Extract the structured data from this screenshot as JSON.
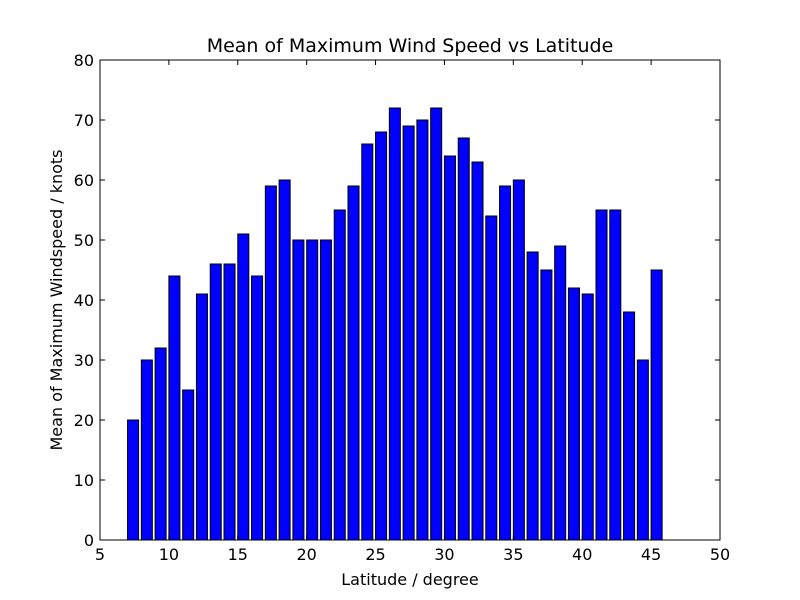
{
  "chart_data": {
    "type": "bar",
    "title": "Mean of Maximum Wind Speed vs Latitude",
    "xlabel": "Latitude / degree",
    "ylabel": "Mean of Maximum Windspeed / knots",
    "xlim": [
      5,
      50
    ],
    "ylim": [
      0,
      80
    ],
    "xticks": [
      5,
      10,
      15,
      20,
      25,
      30,
      35,
      40,
      45,
      50
    ],
    "yticks": [
      0,
      10,
      20,
      30,
      40,
      50,
      60,
      70,
      80
    ],
    "x": [
      7,
      8,
      9,
      10,
      11,
      12,
      13,
      14,
      15,
      16,
      17,
      18,
      19,
      20,
      21,
      22,
      23,
      24,
      25,
      26,
      27,
      28,
      29,
      30,
      31,
      32,
      33,
      34,
      35,
      36,
      37,
      38,
      39,
      40,
      41,
      42,
      43,
      44,
      45
    ],
    "values": [
      20,
      30,
      32,
      44,
      25,
      41,
      46,
      46,
      51,
      44,
      59,
      60,
      50,
      50,
      50,
      55,
      59,
      66,
      68,
      72,
      69,
      70,
      72,
      64,
      67,
      63,
      54,
      59,
      60,
      48,
      45,
      49,
      42,
      41,
      55,
      55,
      38,
      30,
      45
    ],
    "bar_color": "#0000ff",
    "edge_color": "#000000",
    "grid": false,
    "legend": "none"
  }
}
